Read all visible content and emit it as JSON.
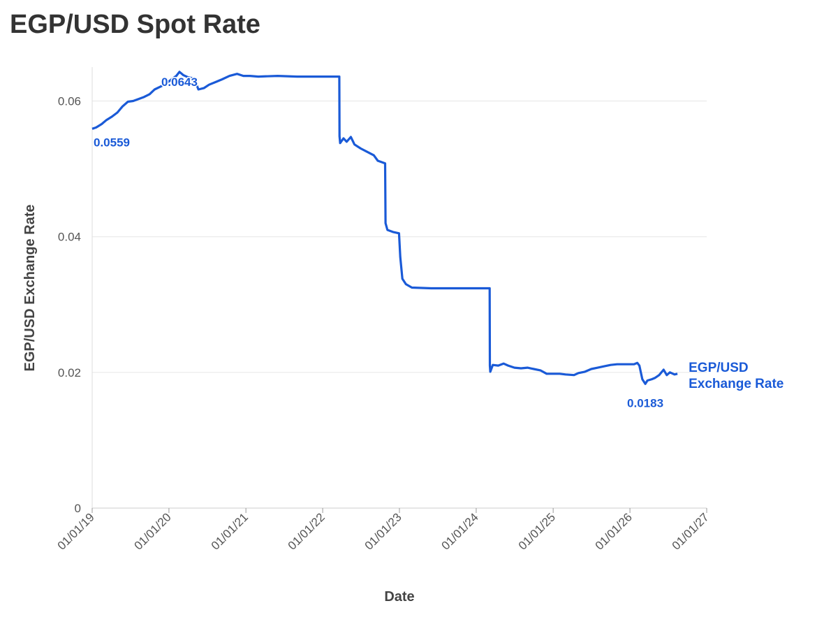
{
  "chart_data": {
    "type": "line",
    "title": "EGP/USD Spot Rate",
    "xlabel": "Date",
    "ylabel": "EGP/USD Exchange Rate",
    "ylim": [
      0,
      0.065
    ],
    "xlim": [
      "2019-01-01",
      "2027-01-01"
    ],
    "x_ticks": [
      {
        "date": "2019-01-01",
        "label": "01/01/19"
      },
      {
        "date": "2020-01-01",
        "label": "01/01/20"
      },
      {
        "date": "2021-01-01",
        "label": "01/01/21"
      },
      {
        "date": "2022-01-01",
        "label": "01/01/22"
      },
      {
        "date": "2023-01-01",
        "label": "01/01/23"
      },
      {
        "date": "2024-01-01",
        "label": "01/01/24"
      },
      {
        "date": "2025-01-01",
        "label": "01/01/25"
      },
      {
        "date": "2026-01-01",
        "label": "01/01/26"
      },
      {
        "date": "2027-01-01",
        "label": "01/01/27"
      }
    ],
    "y_ticks": [
      {
        "value": 0,
        "label": "0"
      },
      {
        "value": 0.02,
        "label": "0.02"
      },
      {
        "value": 0.04,
        "label": "0.04"
      },
      {
        "value": 0.06,
        "label": "0.06"
      }
    ],
    "grid": true,
    "legend": "end-of-line label",
    "series": [
      {
        "name": "EGP/USD Exchange Rate",
        "color": "#1a5ad7",
        "points": [
          [
            "2019-01-01",
            0.0559
          ],
          [
            "2019-01-20",
            0.0561
          ],
          [
            "2019-02-15",
            0.0566
          ],
          [
            "2019-03-10",
            0.0572
          ],
          [
            "2019-04-05",
            0.0577
          ],
          [
            "2019-05-01",
            0.0583
          ],
          [
            "2019-05-25",
            0.0592
          ],
          [
            "2019-06-20",
            0.0599
          ],
          [
            "2019-07-15",
            0.06
          ],
          [
            "2019-08-10",
            0.0603
          ],
          [
            "2019-09-05",
            0.0606
          ],
          [
            "2019-10-01",
            0.061
          ],
          [
            "2019-10-25",
            0.0617
          ],
          [
            "2019-11-20",
            0.0621
          ],
          [
            "2019-12-15",
            0.0625
          ],
          [
            "2020-01-10",
            0.0631
          ],
          [
            "2020-02-05",
            0.0637
          ],
          [
            "2020-02-20",
            0.0643
          ],
          [
            "2020-03-10",
            0.0638
          ],
          [
            "2020-04-01",
            0.0635
          ],
          [
            "2020-05-01",
            0.0633
          ],
          [
            "2020-05-20",
            0.0617
          ],
          [
            "2020-06-15",
            0.0619
          ],
          [
            "2020-07-10",
            0.0624
          ],
          [
            "2020-08-10",
            0.0628
          ],
          [
            "2020-09-10",
            0.0632
          ],
          [
            "2020-10-15",
            0.0637
          ],
          [
            "2020-11-20",
            0.064
          ],
          [
            "2020-12-20",
            0.0637
          ],
          [
            "2021-01-20",
            0.0637
          ],
          [
            "2021-03-01",
            0.0636
          ],
          [
            "2021-06-01",
            0.0637
          ],
          [
            "2021-09-01",
            0.0636
          ],
          [
            "2021-12-01",
            0.0636
          ],
          [
            "2022-03-15",
            0.0636
          ],
          [
            "2022-03-21",
            0.0636
          ],
          [
            "2022-03-22",
            0.0548
          ],
          [
            "2022-03-25",
            0.0538
          ],
          [
            "2022-04-10",
            0.0545
          ],
          [
            "2022-04-25",
            0.054
          ],
          [
            "2022-05-15",
            0.0547
          ],
          [
            "2022-06-01",
            0.0536
          ],
          [
            "2022-07-01",
            0.053
          ],
          [
            "2022-08-01",
            0.0525
          ],
          [
            "2022-09-01",
            0.052
          ],
          [
            "2022-09-20",
            0.0512
          ],
          [
            "2022-10-25",
            0.0508
          ],
          [
            "2022-10-27",
            0.042
          ],
          [
            "2022-11-05",
            0.041
          ],
          [
            "2022-12-01",
            0.0407
          ],
          [
            "2022-12-30",
            0.0405
          ],
          [
            "2023-01-05",
            0.037
          ],
          [
            "2023-01-15",
            0.0338
          ],
          [
            "2023-02-01",
            0.033
          ],
          [
            "2023-03-01",
            0.0325
          ],
          [
            "2023-06-01",
            0.0324
          ],
          [
            "2023-10-01",
            0.0324
          ],
          [
            "2024-03-05",
            0.0324
          ],
          [
            "2024-03-06",
            0.021
          ],
          [
            "2024-03-08",
            0.0201
          ],
          [
            "2024-03-20",
            0.0211
          ],
          [
            "2024-04-15",
            0.021
          ],
          [
            "2024-05-10",
            0.0213
          ],
          [
            "2024-06-01",
            0.021
          ],
          [
            "2024-07-01",
            0.0207
          ],
          [
            "2024-08-01",
            0.0206
          ],
          [
            "2024-09-01",
            0.0207
          ],
          [
            "2024-10-01",
            0.0205
          ],
          [
            "2024-11-01",
            0.0203
          ],
          [
            "2024-12-01",
            0.0198
          ],
          [
            "2025-01-01",
            0.0198
          ],
          [
            "2025-02-01",
            0.0198
          ],
          [
            "2025-03-01",
            0.0197
          ],
          [
            "2025-04-10",
            0.0196
          ],
          [
            "2025-05-01",
            0.0199
          ],
          [
            "2025-06-01",
            0.0201
          ],
          [
            "2025-07-01",
            0.0205
          ],
          [
            "2025-08-01",
            0.0207
          ],
          [
            "2025-09-01",
            0.0209
          ],
          [
            "2025-10-01",
            0.0211
          ],
          [
            "2025-11-01",
            0.0212
          ],
          [
            "2025-12-01",
            0.0212
          ],
          [
            "2026-01-20",
            0.0212
          ],
          [
            "2026-02-05",
            0.0214
          ],
          [
            "2026-02-15",
            0.021
          ],
          [
            "2026-03-01",
            0.019
          ],
          [
            "2026-03-15",
            0.0183
          ],
          [
            "2026-03-25",
            0.0188
          ],
          [
            "2026-04-15",
            0.019
          ],
          [
            "2026-05-01",
            0.0192
          ],
          [
            "2026-05-20",
            0.0196
          ],
          [
            "2026-06-10",
            0.0204
          ],
          [
            "2026-06-25",
            0.0196
          ],
          [
            "2026-07-10",
            0.02
          ],
          [
            "2026-08-01",
            0.0197
          ],
          [
            "2026-08-15",
            0.0198
          ]
        ]
      }
    ],
    "annotations": [
      {
        "date": "2019-01-01",
        "value": 0.0559,
        "label": "0.0559"
      },
      {
        "date": "2020-02-20",
        "value": 0.0643,
        "label": "0.0643"
      },
      {
        "date": "2026-03-15",
        "value": 0.0183,
        "label": "0.0183"
      }
    ]
  }
}
